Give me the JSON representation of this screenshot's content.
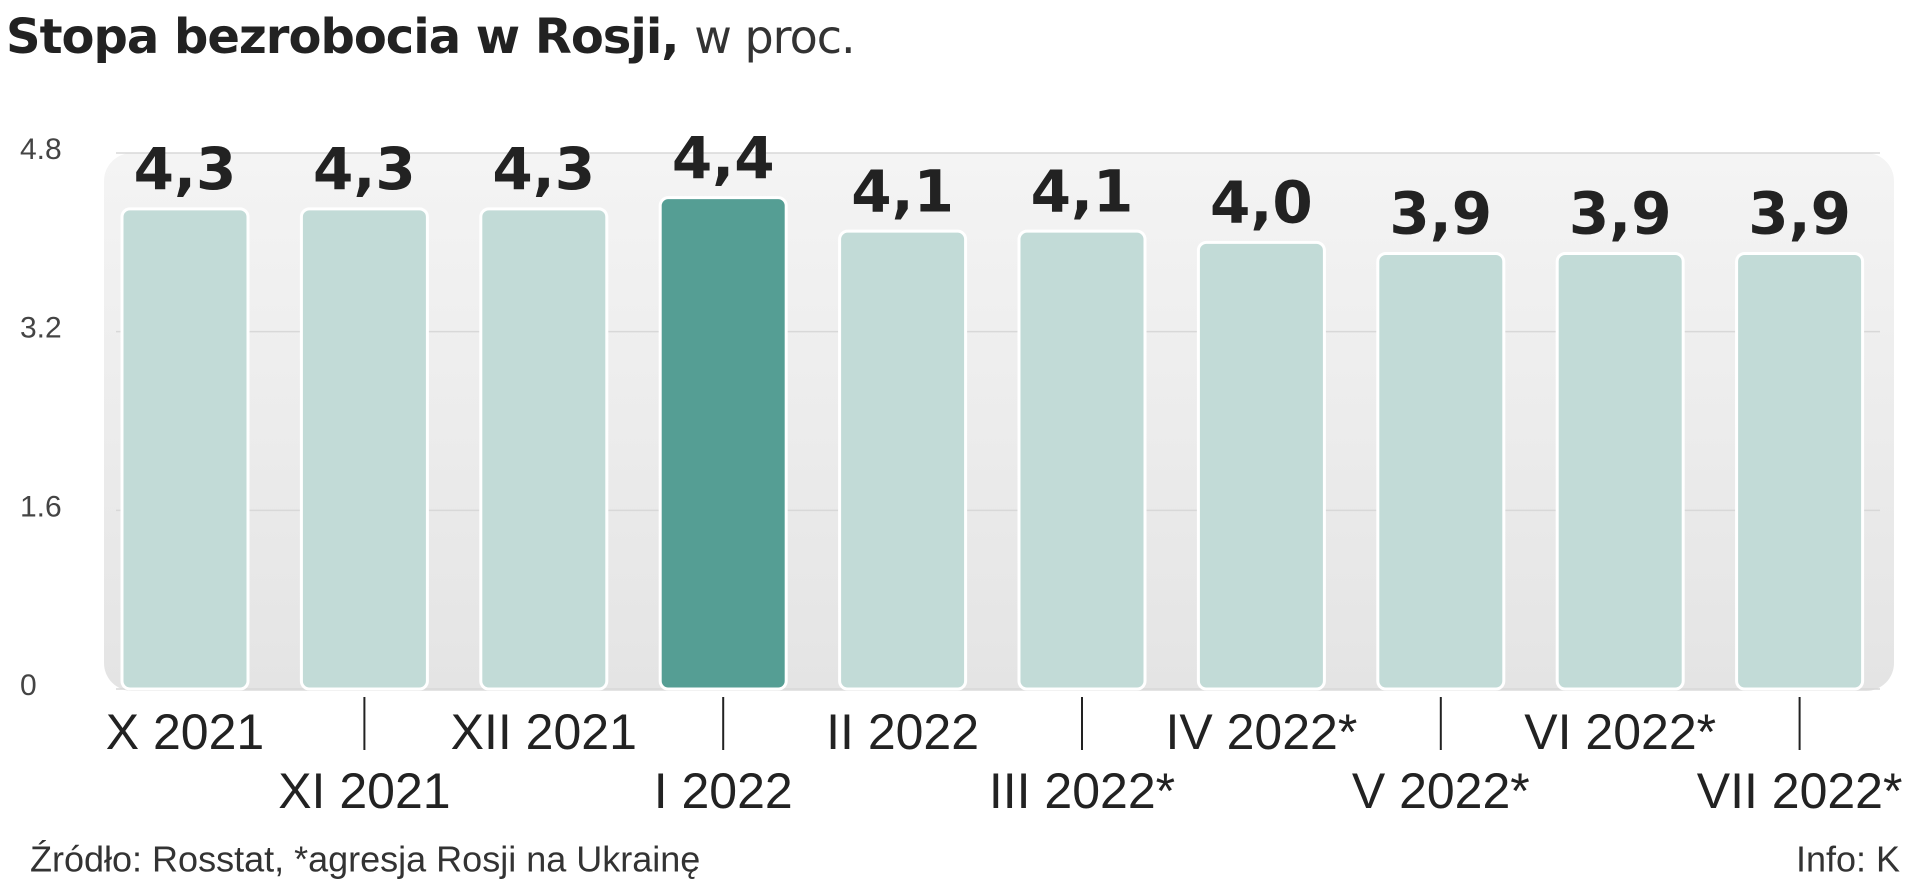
{
  "chart_data": {
    "type": "bar",
    "title": "Stopa bezrobocia w Rosji,",
    "subtitle": "w proc.",
    "categories": [
      "X 2021",
      "XI 2021",
      "XII 2021",
      "I 2022",
      "II 2022",
      "III 2022*",
      "IV 2022*",
      "V 2022*",
      "VI 2022*",
      "VII 2022*"
    ],
    "values": [
      4.3,
      4.3,
      4.3,
      4.4,
      4.1,
      4.1,
      4.0,
      3.9,
      3.9,
      3.9
    ],
    "value_labels": [
      "4,3",
      "4,3",
      "4,3",
      "4,4",
      "4,1",
      "4,1",
      "4,0",
      "3,9",
      "3,9",
      "3,9"
    ],
    "colors": [
      "#c2dbd7",
      "#c2dbd7",
      "#c2dbd7",
      "#559e94",
      "#c2dbd7",
      "#c2dbd7",
      "#c2dbd7",
      "#c2dbd7",
      "#c2dbd7",
      "#c2dbd7"
    ],
    "ylim": [
      0,
      4.8
    ],
    "yticks": [
      0,
      1.6,
      3.2,
      4.8
    ],
    "grid": true,
    "source": "Źródło: Rosstat, *agresja Rosji na Ukrainę",
    "credit": "Info: K"
  }
}
